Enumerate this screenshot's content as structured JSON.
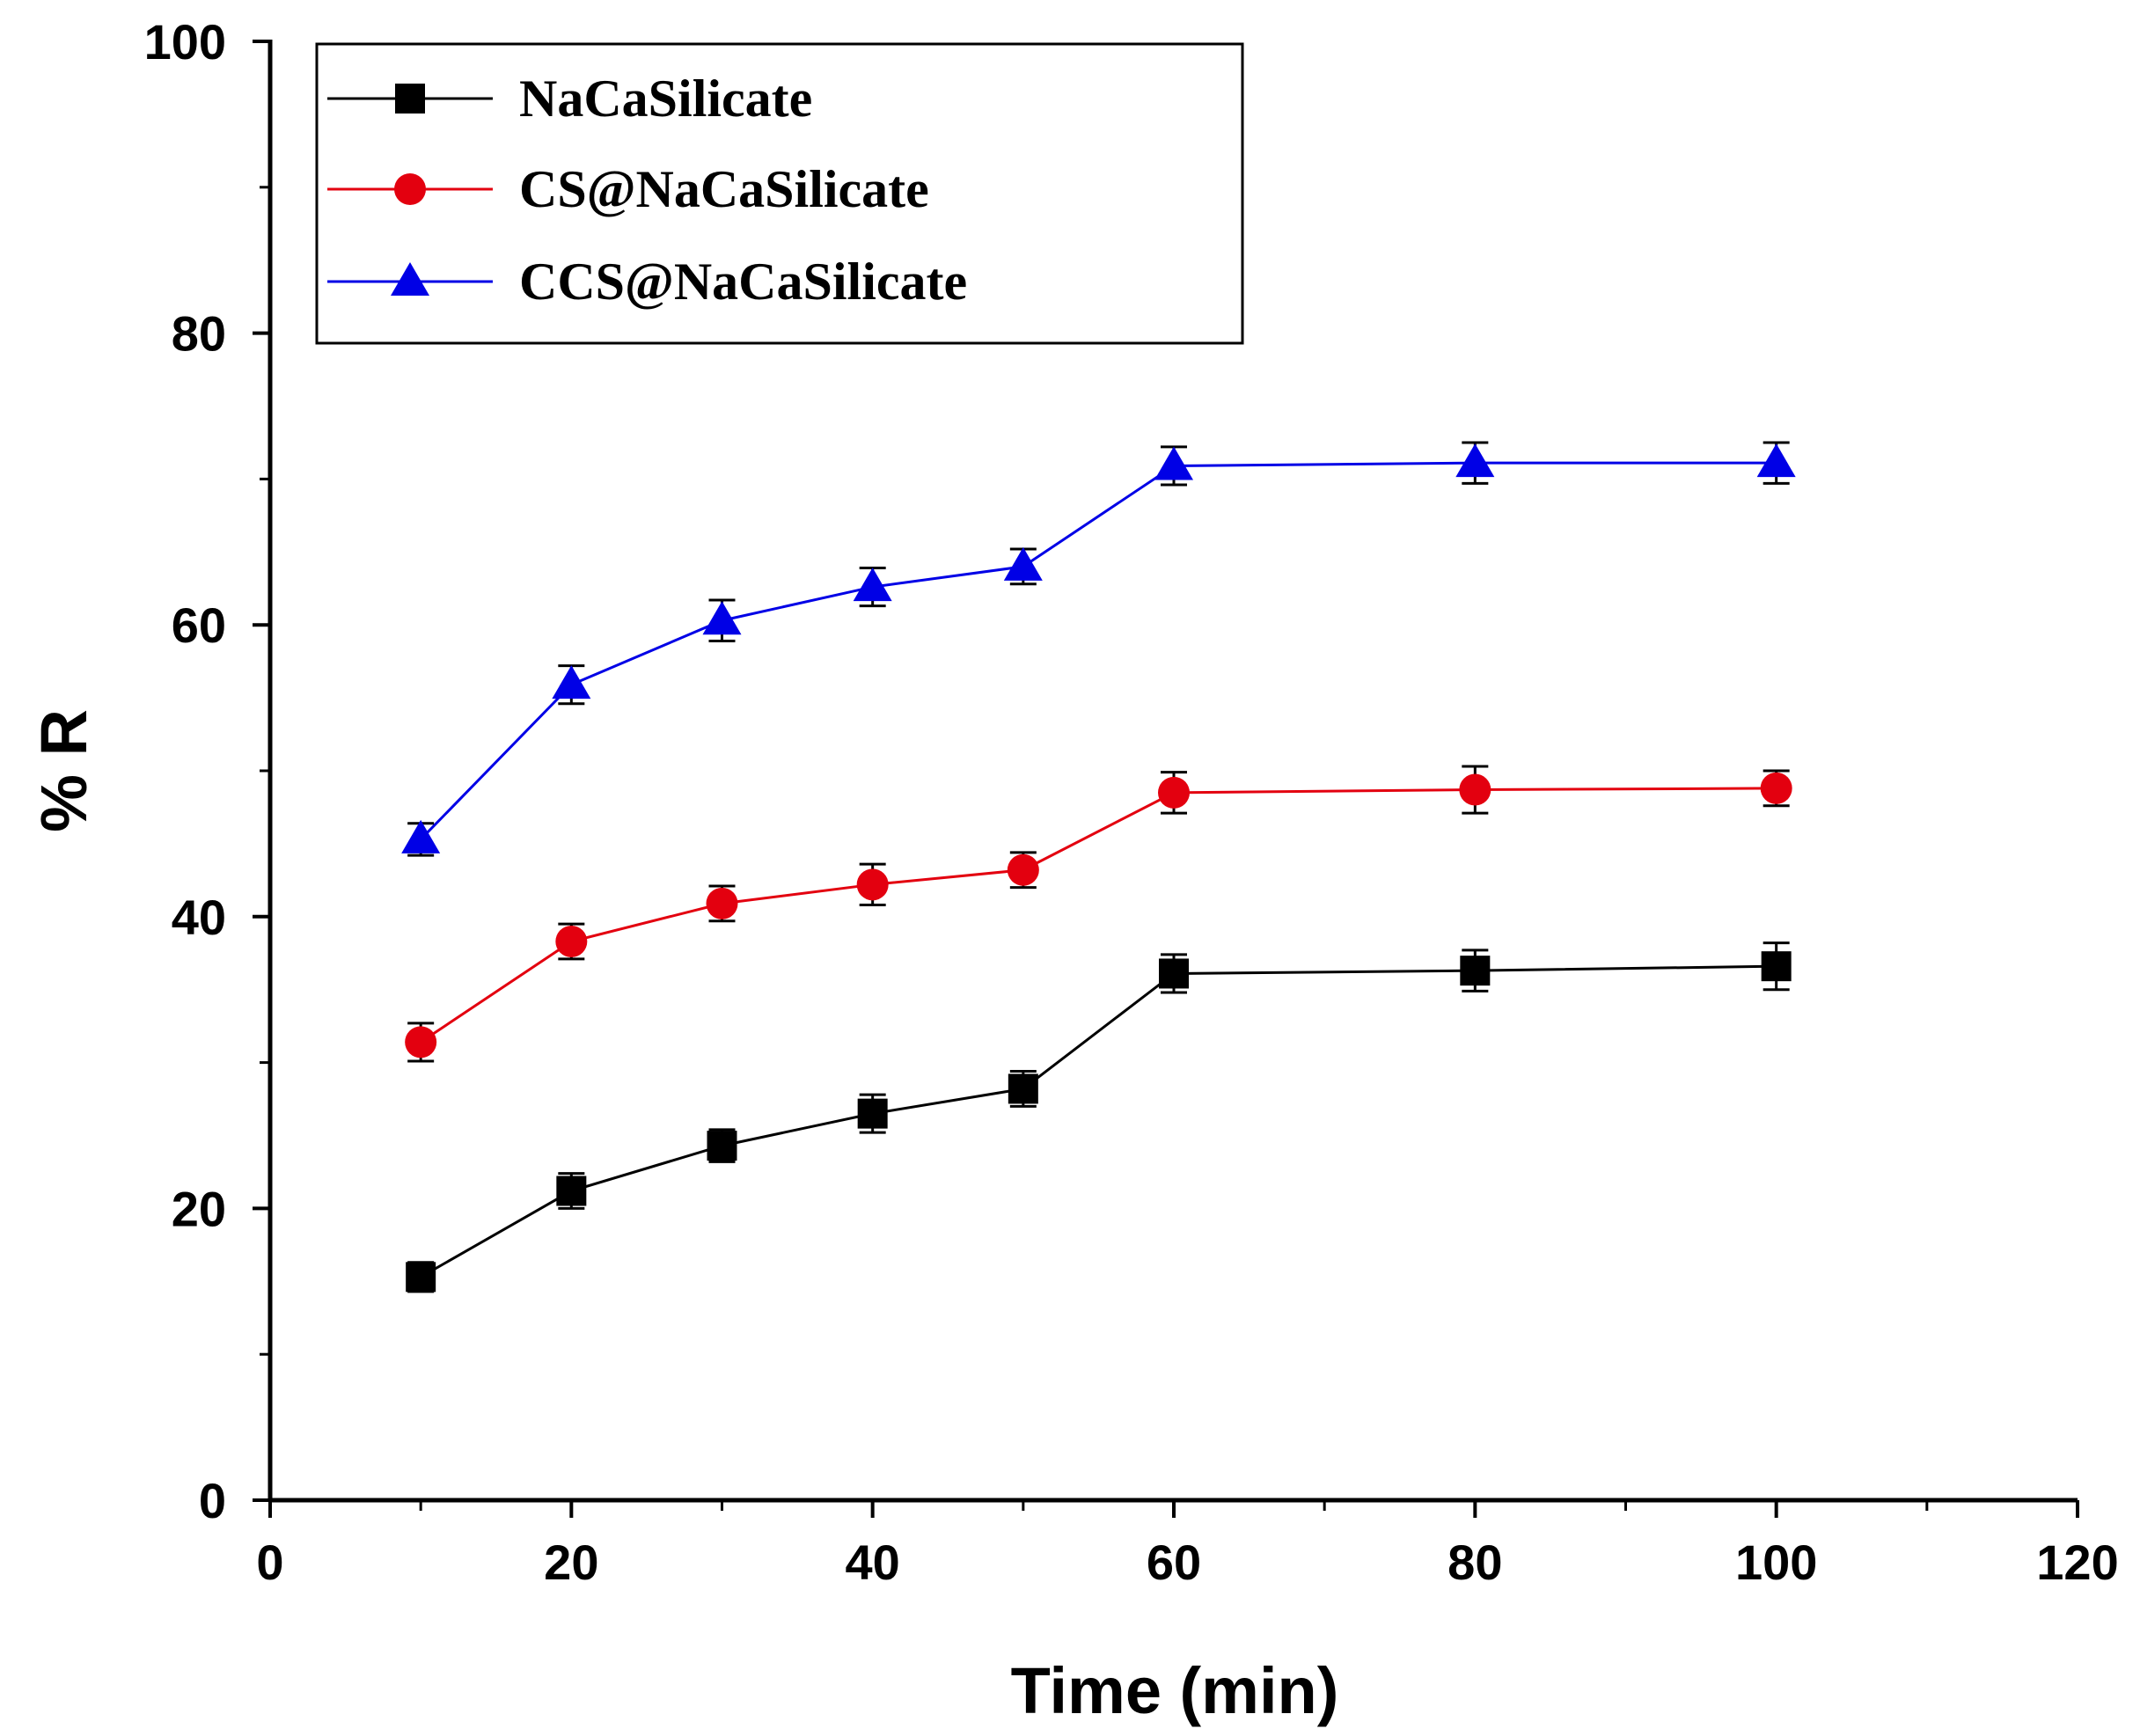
{
  "chart_data": {
    "type": "line",
    "xlabel": "Time (min)",
    "ylabel": "% R",
    "xlim": [
      0,
      120
    ],
    "ylim": [
      0,
      100
    ],
    "x_ticks": [
      "0",
      "20",
      "40",
      "60",
      "80",
      "100",
      "120"
    ],
    "y_ticks": [
      "0",
      "20",
      "40",
      "60",
      "80",
      "100"
    ],
    "grid": false,
    "legend_position": "top-left",
    "x": [
      10,
      20,
      30,
      40,
      50,
      60,
      80,
      100
    ],
    "series": [
      {
        "name": "NaCaSilicate",
        "color": "#000000",
        "marker": "square",
        "values": [
          15.3,
          21.2,
          24.3,
          26.5,
          28.2,
          36.1,
          36.3,
          36.6
        ],
        "errors": [
          1.0,
          1.2,
          1.1,
          1.3,
          1.2,
          1.3,
          1.4,
          1.6
        ]
      },
      {
        "name": "CS@NaCaSilicate",
        "color": "#e3000f",
        "marker": "circle",
        "values": [
          31.4,
          38.3,
          40.9,
          42.2,
          43.2,
          48.5,
          48.7,
          48.8
        ],
        "errors": [
          1.3,
          1.2,
          1.2,
          1.4,
          1.2,
          1.4,
          1.6,
          1.2
        ]
      },
      {
        "name": "CCS@NaCaSilicate",
        "color": "#0000e6",
        "marker": "triangle",
        "values": [
          45.3,
          55.9,
          60.3,
          62.6,
          64.0,
          70.9,
          71.1,
          71.1
        ],
        "errors": [
          1.1,
          1.3,
          1.4,
          1.3,
          1.2,
          1.3,
          1.4,
          1.4
        ]
      }
    ]
  }
}
